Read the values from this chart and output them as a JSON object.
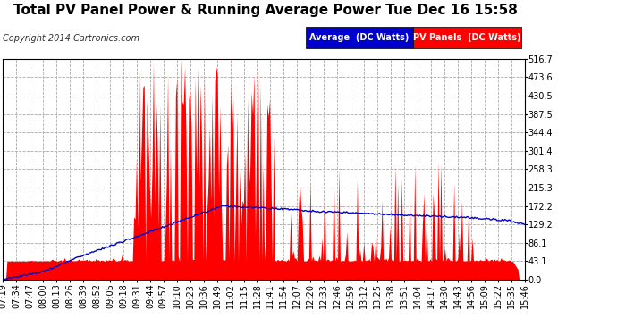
{
  "title": "Total PV Panel Power & Running Average Power Tue Dec 16 15:58",
  "copyright": "Copyright 2014 Cartronics.com",
  "legend_avg": "Average  (DC Watts)",
  "legend_pv": "PV Panels  (DC Watts)",
  "ylim": [
    0,
    516.7
  ],
  "yticks": [
    0.0,
    43.1,
    86.1,
    129.2,
    172.2,
    215.3,
    258.3,
    301.4,
    344.4,
    387.5,
    430.5,
    473.6,
    516.7
  ],
  "ytick_labels": [
    "0.0",
    "43.1",
    "86.1",
    "129.2",
    "172.2",
    "215.3",
    "258.3",
    "301.4",
    "344.4",
    "387.5",
    "430.5",
    "473.6",
    "516.7"
  ],
  "xtick_labels": [
    "07:19",
    "07:34",
    "07:47",
    "08:00",
    "08:13",
    "08:26",
    "08:39",
    "08:52",
    "09:05",
    "09:18",
    "09:31",
    "09:44",
    "09:57",
    "10:10",
    "10:23",
    "10:36",
    "10:49",
    "11:02",
    "11:15",
    "11:28",
    "11:41",
    "11:54",
    "12:07",
    "12:20",
    "12:33",
    "12:46",
    "12:59",
    "13:12",
    "13:25",
    "13:38",
    "13:51",
    "14:04",
    "14:17",
    "14:30",
    "14:43",
    "14:56",
    "15:09",
    "15:22",
    "15:35",
    "15:46"
  ],
  "background_color": "#ffffff",
  "grid_color": "#aaaaaa",
  "fill_color": "#ff0000",
  "line_color": "#0000cc",
  "title_fontsize": 11,
  "copyright_fontsize": 7,
  "tick_fontsize": 7
}
